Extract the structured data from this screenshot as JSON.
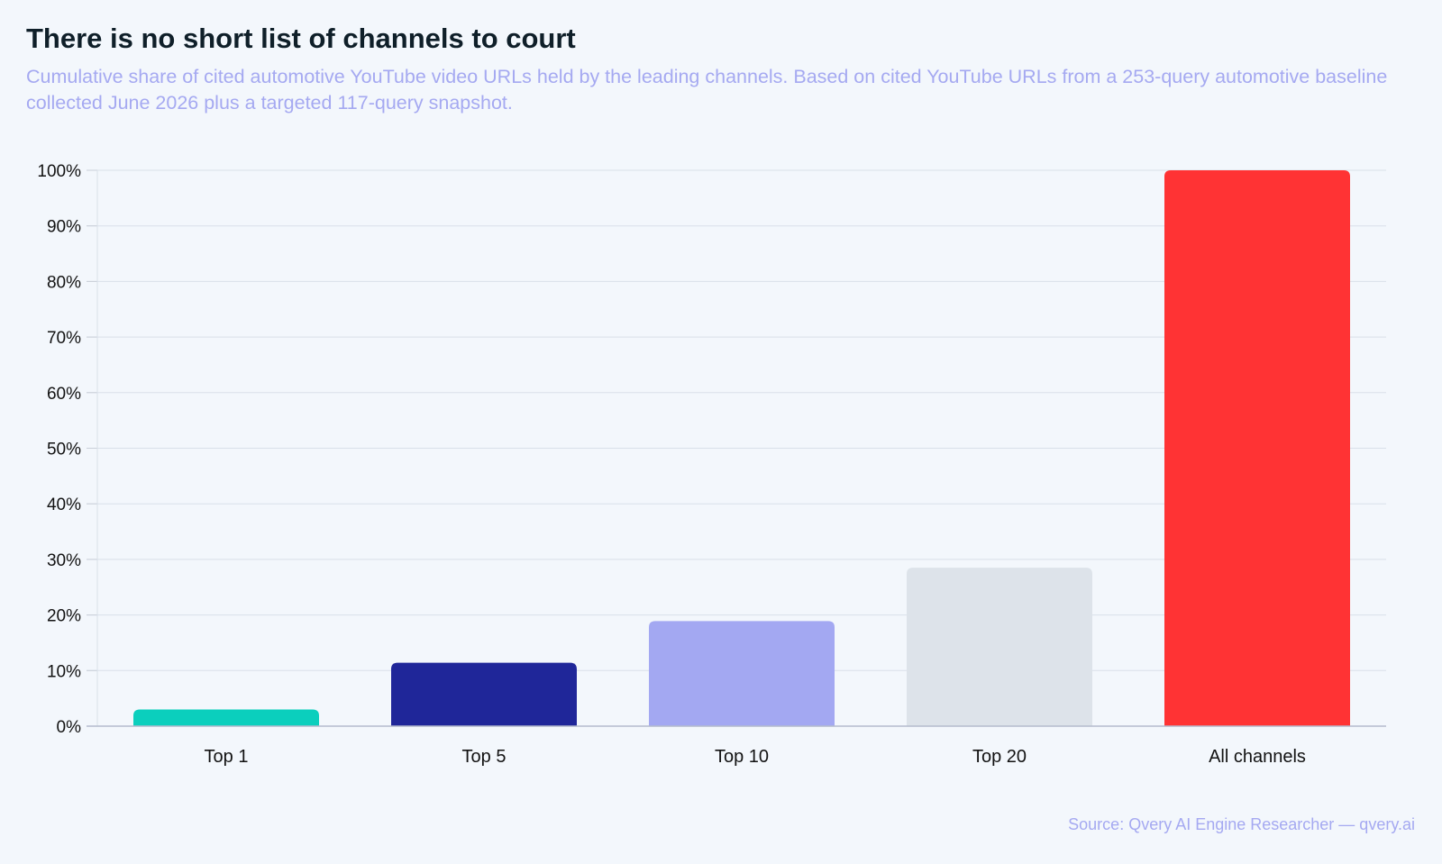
{
  "header": {
    "title": "There is no short list of channels to court",
    "subtitle": "Cumulative share of cited automotive YouTube video URLs held by the leading channels. Based on cited YouTube URLs from a 253-query automotive baseline collected June 2026 plus a targeted 117-query snapshot."
  },
  "footer": {
    "source": "Source: Qvery AI Engine Researcher — qvery.ai"
  },
  "chart_data": {
    "type": "bar",
    "title": "There is no short list of channels to court",
    "subtitle": "Cumulative share of cited automotive YouTube video URLs held by the leading channels. Based on cited YouTube URLs from a 253-query automotive baseline collected June 2026 plus a targeted 117-query snapshot.",
    "categories": [
      "Top 1",
      "Top 5",
      "Top 10",
      "Top 20",
      "All channels"
    ],
    "values": [
      3,
      11.4,
      18.9,
      28.5,
      100
    ],
    "colors": [
      "#0bcfbd",
      "#1f2699",
      "#a3a8f2",
      "#dde3ea",
      "#ff3334"
    ],
    "ylim": [
      0,
      100
    ],
    "yticks": [
      0,
      10,
      20,
      30,
      40,
      50,
      60,
      70,
      80,
      90,
      100
    ],
    "ytick_suffix": "%",
    "grid": true,
    "legend": "none",
    "xlabel": "",
    "ylabel": ""
  }
}
